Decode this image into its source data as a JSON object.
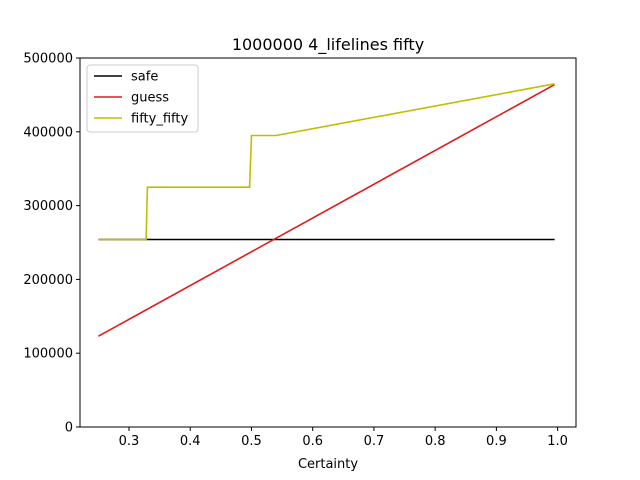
{
  "chart_data": {
    "type": "line",
    "title": "1000000 4_lifelines fifty",
    "xlabel": "Certainty",
    "ylabel": "",
    "xlim": [
      0.22,
      1.03
    ],
    "ylim": [
      0,
      500000
    ],
    "xticks": [
      0.3,
      0.4,
      0.5,
      0.6,
      0.7,
      0.8,
      0.9,
      1.0
    ],
    "xtick_labels": [
      "0.3",
      "0.4",
      "0.5",
      "0.6",
      "0.7",
      "0.8",
      "0.9",
      "1.0"
    ],
    "yticks": [
      0,
      100000,
      200000,
      300000,
      400000,
      500000
    ],
    "ytick_labels": [
      "0",
      "100000",
      "200000",
      "300000",
      "400000",
      "500000"
    ],
    "grid": false,
    "legend": "top-left",
    "series": [
      {
        "name": "safe",
        "color": "#000000",
        "points": [
          [
            0.25,
            254000
          ],
          [
            0.995,
            254000
          ]
        ]
      },
      {
        "name": "guess",
        "color": "#e31a1c",
        "points": [
          [
            0.25,
            123000
          ],
          [
            0.995,
            464000
          ]
        ]
      },
      {
        "name": "fifty_fifty",
        "color": "#bfbf00",
        "points": [
          [
            0.25,
            254000
          ],
          [
            0.328,
            254000
          ],
          [
            0.33,
            325000
          ],
          [
            0.497,
            325000
          ],
          [
            0.5,
            395000
          ],
          [
            0.54,
            395000
          ],
          [
            0.995,
            465000
          ]
        ]
      }
    ]
  }
}
